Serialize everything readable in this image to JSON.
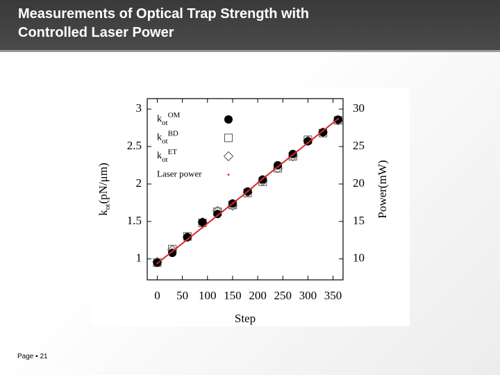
{
  "slide": {
    "title": "Measurements of Optical Trap Strength with Controlled Laser Power",
    "footer": "Page ▪ 21"
  },
  "chart_data": {
    "type": "scatter",
    "xlabel": "Step",
    "ylabel": "kot(pN/μm)",
    "y2label": "Power(mW)",
    "x": [
      0,
      30,
      60,
      90,
      120,
      150,
      180,
      210,
      240,
      270,
      300,
      330,
      360
    ],
    "series": [
      {
        "name": "kotOM",
        "color": "#000000",
        "marker": "circle",
        "values": [
          0.95,
          1.08,
          1.29,
          1.49,
          1.6,
          1.74,
          1.9,
          2.06,
          2.25,
          2.4,
          2.57,
          2.69,
          2.86
        ]
      },
      {
        "name": "kotBD",
        "color": "#555555",
        "marker": "square",
        "values": [
          0.95,
          1.13,
          1.3,
          1.48,
          1.63,
          1.72,
          1.88,
          2.03,
          2.21,
          2.37,
          2.59,
          2.68,
          2.85
        ]
      },
      {
        "name": "kotET",
        "color": "#555555",
        "marker": "diamond",
        "values": [
          0.96,
          1.12,
          1.29,
          1.49,
          1.64,
          1.71,
          1.89,
          2.04,
          2.21,
          2.37,
          2.58,
          2.69,
          2.85
        ]
      },
      {
        "name": "Laser power",
        "color": "#dd2222",
        "marker": "dot",
        "line": true,
        "axis": "y2",
        "values": [
          9.4,
          11.0,
          12.6,
          14.2,
          15.8,
          17.4,
          19.0,
          20.7,
          22.3,
          23.9,
          25.5,
          27.1,
          28.7
        ]
      }
    ],
    "xlim": [
      -20,
      370
    ],
    "xticks": [
      0,
      50,
      100,
      150,
      200,
      250,
      300,
      350
    ],
    "ylim": [
      0.72,
      3.14
    ],
    "yticks": [
      1,
      1.5,
      2,
      2.5,
      3
    ],
    "y2lim": [
      7.2,
      31.4
    ],
    "y2ticks": [
      10,
      15,
      20,
      25,
      30
    ],
    "legend": "upper-left"
  }
}
